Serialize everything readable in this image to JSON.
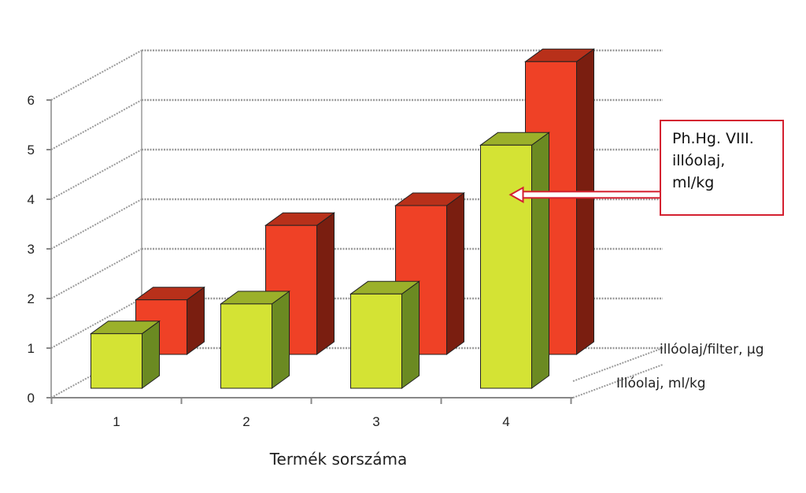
{
  "chart_data": {
    "type": "bar",
    "categories": [
      "1",
      "2",
      "3",
      "4"
    ],
    "series": [
      {
        "name": "Illóolaj, ml/kg",
        "values": [
          1.1,
          1.7,
          1.9,
          4.9
        ],
        "color": "#d4e334",
        "side_color": "#6b8a22"
      },
      {
        "name": "illóolaj/filter, µg",
        "values": [
          1.1,
          2.6,
          3.0,
          5.9
        ],
        "color": "#ef4126",
        "side_color": "#7a1e10"
      }
    ],
    "xlabel": "Termék sorszáma",
    "ylim": [
      0,
      6
    ],
    "yticks": [
      "0",
      "1",
      "2",
      "3",
      "4",
      "5",
      "6"
    ],
    "grid": true,
    "annotation": {
      "lines": [
        "Ph.Hg. VIII.",
        "illóolaj,",
        "ml/kg"
      ],
      "target_series": 0,
      "target_category": 3,
      "target_value": 3.9,
      "border_color": "#d42030"
    }
  }
}
